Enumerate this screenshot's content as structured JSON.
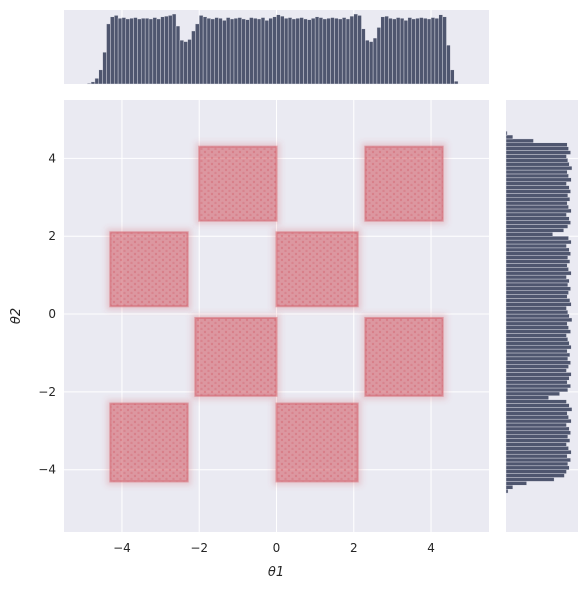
{
  "chart_data": {
    "type": "hexbin_joint",
    "title": "",
    "xlabel": "θ1",
    "ylabel": "θ2",
    "xlim": [
      -5.5,
      5.5
    ],
    "ylim": [
      -5.6,
      5.5
    ],
    "xticks": [
      "−4",
      "−2",
      "0",
      "2",
      "4"
    ],
    "xtick_values": [
      -4,
      -2,
      0,
      2,
      4
    ],
    "yticks": [
      "−4",
      "−2",
      "0",
      "2",
      "4"
    ],
    "ytick_values": [
      -4,
      -2,
      0,
      2,
      4
    ],
    "grid": true,
    "colors": {
      "background": "#eaeaf2",
      "grid": "#ffffff",
      "density": "#d0525e",
      "hist_bar": "#4f566f",
      "hist_edge": "#eaeaf2"
    },
    "squares": [
      {
        "x": [
          -2.0,
          0.0
        ],
        "y": [
          2.4,
          4.3
        ]
      },
      {
        "x": [
          2.3,
          4.3
        ],
        "y": [
          2.4,
          4.3
        ]
      },
      {
        "x": [
          -4.3,
          -2.3
        ],
        "y": [
          0.2,
          2.1
        ]
      },
      {
        "x": [
          0.0,
          2.1
        ],
        "y": [
          0.2,
          2.1
        ]
      },
      {
        "x": [
          -2.1,
          0.0
        ],
        "y": [
          -2.1,
          -0.1
        ]
      },
      {
        "x": [
          2.3,
          4.3
        ],
        "y": [
          -2.1,
          -0.1
        ]
      },
      {
        "x": [
          -4.3,
          -2.3
        ],
        "y": [
          -4.3,
          -2.3
        ]
      },
      {
        "x": [
          0.0,
          2.1
        ],
        "y": [
          -4.3,
          -2.3
        ]
      }
    ],
    "top_histogram": {
      "bin_edges_x": [
        -4.9,
        -4.8,
        -4.7,
        -4.6,
        -4.5,
        -4.4,
        -4.3,
        -4.2,
        -4.1,
        -4.0,
        -3.9,
        -3.8,
        -3.7,
        -3.6,
        -3.5,
        -3.4,
        -3.3,
        -3.2,
        -3.1,
        -3.0,
        -2.9,
        -2.8,
        -2.7,
        -2.6,
        -2.5,
        -2.4,
        -2.3,
        -2.2,
        -2.1,
        -2.0,
        -1.9,
        -1.8,
        -1.7,
        -1.6,
        -1.5,
        -1.4,
        -1.3,
        -1.2,
        -1.1,
        -1.0,
        -0.9,
        -0.8,
        -0.7,
        -0.6,
        -0.5,
        -0.4,
        -0.3,
        -0.2,
        -0.1,
        0.0,
        0.1,
        0.2,
        0.3,
        0.4,
        0.5,
        0.6,
        0.7,
        0.8,
        0.9,
        1.0,
        1.1,
        1.2,
        1.3,
        1.4,
        1.5,
        1.6,
        1.7,
        1.8,
        1.9,
        2.0,
        2.1,
        2.2,
        2.3,
        2.4,
        2.5,
        2.6,
        2.7,
        2.8,
        2.9,
        3.0,
        3.1,
        3.2,
        3.3,
        3.4,
        3.5,
        3.6,
        3.7,
        3.8,
        3.9,
        4.0,
        4.1,
        4.2,
        4.3,
        4.4,
        4.5,
        4.6,
        4.7
      ],
      "counts": [
        1,
        3,
        8,
        20,
        45,
        85,
        95,
        97,
        93,
        94,
        92,
        93,
        94,
        92,
        93,
        93,
        92,
        94,
        92,
        95,
        96,
        97,
        99,
        82,
        62,
        60,
        63,
        75,
        85,
        97,
        95,
        93,
        92,
        94,
        93,
        90,
        94,
        92,
        93,
        94,
        92,
        91,
        94,
        93,
        92,
        94,
        90,
        93,
        95,
        98,
        96,
        93,
        94,
        92,
        93,
        94,
        92,
        91,
        93,
        95,
        94,
        92,
        93,
        94,
        93,
        92,
        94,
        92,
        96,
        99,
        97,
        78,
        62,
        60,
        65,
        80,
        95,
        96,
        93,
        92,
        94,
        93,
        90,
        94,
        92,
        93,
        94,
        93,
        92,
        94,
        93,
        98,
        95,
        55,
        20,
        4
      ]
    },
    "right_histogram": {
      "bin_edges_y": [
        -4.6,
        -4.5,
        -4.4,
        -4.3,
        -4.2,
        -4.1,
        -4.0,
        -3.9,
        -3.8,
        -3.7,
        -3.6,
        -3.5,
        -3.4,
        -3.3,
        -3.2,
        -3.1,
        -3.0,
        -2.9,
        -2.8,
        -2.7,
        -2.6,
        -2.5,
        -2.4,
        -2.3,
        -2.2,
        -2.1,
        -2.0,
        -1.9,
        -1.8,
        -1.7,
        -1.6,
        -1.5,
        -1.4,
        -1.3,
        -1.2,
        -1.1,
        -1.0,
        -0.9,
        -0.8,
        -0.7,
        -0.6,
        -0.5,
        -0.4,
        -0.3,
        -0.2,
        -0.1,
        0.0,
        0.1,
        0.2,
        0.3,
        0.4,
        0.5,
        0.6,
        0.7,
        0.8,
        0.9,
        1.0,
        1.1,
        1.2,
        1.3,
        1.4,
        1.5,
        1.6,
        1.7,
        1.8,
        1.9,
        2.0,
        2.1,
        2.2,
        2.3,
        2.4,
        2.5,
        2.6,
        2.7,
        2.8,
        2.9,
        3.0,
        3.1,
        3.2,
        3.3,
        3.4,
        3.5,
        3.6,
        3.7,
        3.8,
        3.9,
        4.0,
        4.1,
        4.2,
        4.3,
        4.4,
        4.5,
        4.6,
        4.7
      ],
      "counts": [
        3,
        10,
        30,
        70,
        85,
        88,
        92,
        90,
        94,
        89,
        95,
        91,
        88,
        93,
        90,
        94,
        92,
        88,
        95,
        91,
        89,
        96,
        92,
        88,
        62,
        78,
        90,
        94,
        89,
        92,
        95,
        88,
        91,
        94,
        90,
        93,
        89,
        95,
        92,
        90,
        88,
        94,
        91,
        89,
        96,
        92,
        90,
        88,
        95,
        93,
        89,
        91,
        94,
        90,
        92,
        88,
        95,
        91,
        89,
        93,
        90,
        94,
        92,
        88,
        95,
        91,
        68,
        84,
        90,
        94,
        92,
        88,
        95,
        91,
        89,
        93,
        90,
        94,
        92,
        88,
        95,
        91,
        89,
        96,
        92,
        90,
        88,
        94,
        91,
        89,
        40,
        10,
        2
      ]
    }
  }
}
